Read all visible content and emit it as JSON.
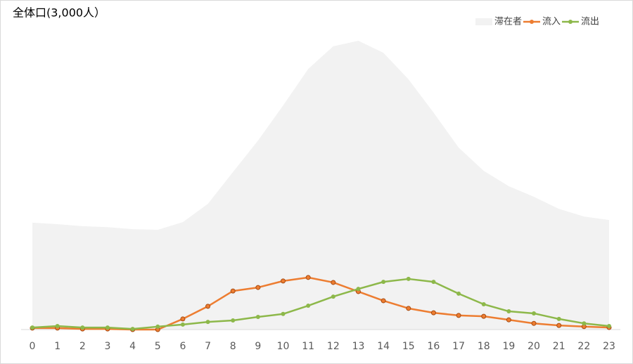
{
  "chart_data": {
    "type": "line",
    "title": "全体口(3,000人）",
    "categories": [
      "0",
      "1",
      "2",
      "3",
      "4",
      "5",
      "6",
      "7",
      "8",
      "9",
      "10",
      "11",
      "12",
      "13",
      "14",
      "15",
      "16",
      "17",
      "18",
      "19",
      "20",
      "21",
      "22",
      "23"
    ],
    "ylim": [
      0,
      100
    ],
    "legend": "top-right",
    "series": [
      {
        "name": "滞在者",
        "kind": "area",
        "color": "#f2f2f2",
        "values": [
          36.3,
          35.8,
          35.1,
          34.8,
          34.1,
          33.9,
          36.5,
          42.7,
          53.5,
          64.2,
          76.1,
          88.5,
          96.2,
          98.1,
          94,
          85,
          73.7,
          61.8,
          53.9,
          48.7,
          45.1,
          41,
          38.4,
          37.2
        ]
      },
      {
        "name": "流入",
        "kind": "line",
        "color": "#ed7d31",
        "values": [
          0.5,
          0.5,
          0.2,
          0.2,
          0,
          0,
          3.6,
          7.9,
          13.1,
          14.3,
          16.5,
          17.7,
          16,
          12.9,
          9.8,
          7.2,
          5.7,
          4.8,
          4.5,
          3.3,
          2.1,
          1.4,
          1,
          0.7
        ]
      },
      {
        "name": "流出",
        "kind": "line",
        "color": "#8db84a",
        "values": [
          0.7,
          1.2,
          0.7,
          0.7,
          0.2,
          1,
          1.7,
          2.6,
          3.1,
          4.3,
          5.3,
          8.1,
          11.2,
          13.8,
          16.2,
          17.2,
          16.2,
          12.2,
          8.6,
          6.2,
          5.5,
          3.6,
          2.1,
          1.2
        ]
      }
    ]
  }
}
